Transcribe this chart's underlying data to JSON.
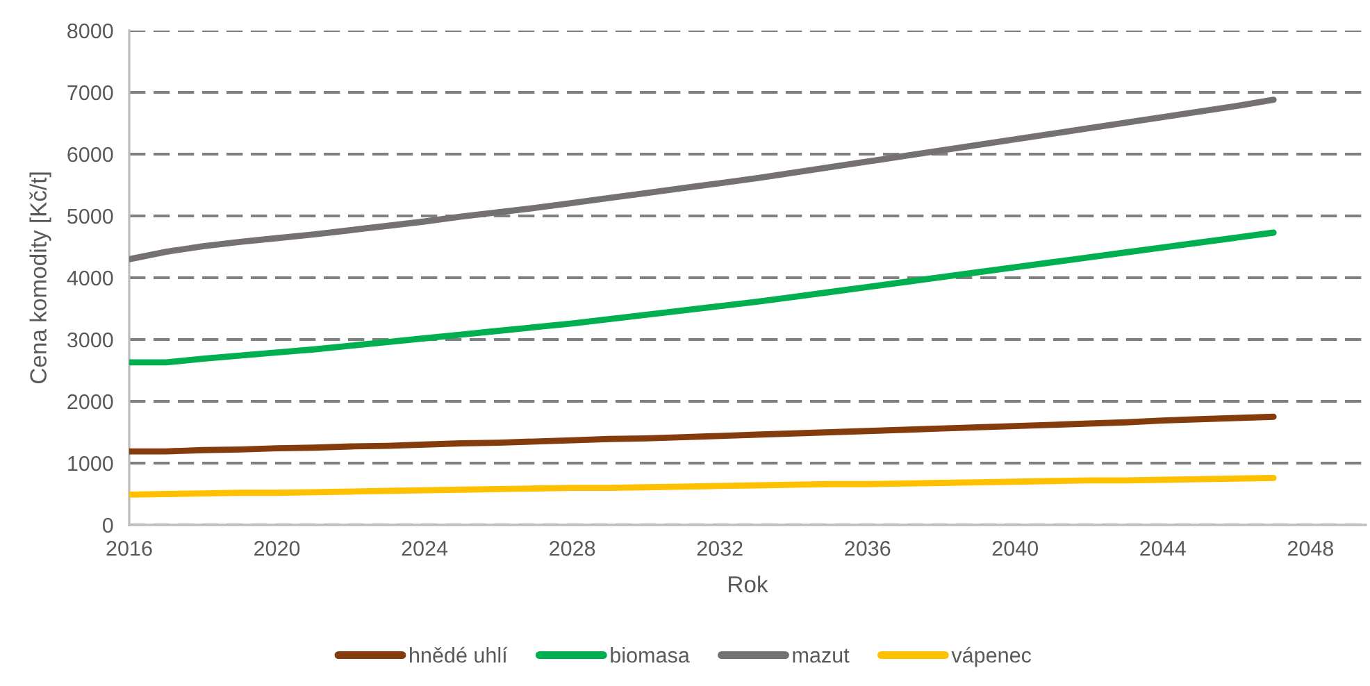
{
  "chart_data": {
    "type": "line",
    "xlabel": "Rok",
    "ylabel": "Cena komodity [Kč/t]",
    "x": [
      2016,
      2017,
      2018,
      2019,
      2020,
      2021,
      2022,
      2023,
      2024,
      2025,
      2026,
      2027,
      2028,
      2029,
      2030,
      2031,
      2032,
      2033,
      2034,
      2035,
      2036,
      2037,
      2038,
      2039,
      2040,
      2041,
      2042,
      2043,
      2044,
      2045,
      2046,
      2047
    ],
    "series": [
      {
        "name": "hnědé uhlí",
        "color": "#843c0c",
        "values": [
          1190,
          1190,
          1210,
          1220,
          1240,
          1250,
          1270,
          1280,
          1300,
          1320,
          1330,
          1350,
          1370,
          1390,
          1400,
          1420,
          1440,
          1460,
          1480,
          1500,
          1520,
          1540,
          1560,
          1580,
          1600,
          1620,
          1640,
          1660,
          1690,
          1710,
          1730,
          1750
        ]
      },
      {
        "name": "biomasa",
        "color": "#00b050",
        "values": [
          2630,
          2630,
          2690,
          2740,
          2790,
          2840,
          2900,
          2960,
          3020,
          3080,
          3140,
          3200,
          3260,
          3330,
          3400,
          3470,
          3540,
          3610,
          3690,
          3770,
          3850,
          3930,
          4010,
          4090,
          4170,
          4250,
          4330,
          4410,
          4490,
          4570,
          4650,
          4730
        ]
      },
      {
        "name": "mazut",
        "color": "#767171",
        "values": [
          4300,
          4420,
          4510,
          4580,
          4640,
          4700,
          4770,
          4840,
          4910,
          4990,
          5060,
          5130,
          5210,
          5290,
          5370,
          5450,
          5530,
          5610,
          5700,
          5790,
          5880,
          5970,
          6060,
          6150,
          6240,
          6330,
          6420,
          6510,
          6600,
          6690,
          6780,
          6880
        ]
      },
      {
        "name": "vápenec",
        "color": "#ffc000",
        "values": [
          490,
          500,
          510,
          520,
          520,
          530,
          540,
          550,
          560,
          570,
          580,
          590,
          600,
          600,
          610,
          620,
          630,
          640,
          650,
          660,
          660,
          670,
          680,
          690,
          700,
          710,
          720,
          720,
          730,
          740,
          750,
          760
        ]
      }
    ],
    "xlim": [
      2016,
      2049.5
    ],
    "xticks": [
      2016,
      2020,
      2024,
      2028,
      2032,
      2036,
      2040,
      2044,
      2048
    ],
    "ylim": [
      0,
      8000
    ],
    "yticks": [
      0,
      1000,
      2000,
      3000,
      4000,
      5000,
      6000,
      7000,
      8000
    ],
    "grid": "y",
    "legend": "bottom",
    "line_style": "solid"
  }
}
